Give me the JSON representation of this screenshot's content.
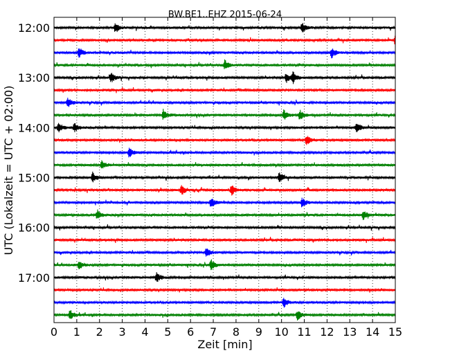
{
  "chart_data": {
    "type": "line",
    "title": "BW.BE1..EHZ 2015-06-24",
    "xlabel": "Zeit  [min]",
    "ylabel": "UTC (Lokalzeit = UTC + 02:00)",
    "xlim": [
      0,
      15
    ],
    "x_ticks": [
      "0",
      "1",
      "2",
      "3",
      "4",
      "5",
      "6",
      "7",
      "8",
      "9",
      "10",
      "11",
      "12",
      "13",
      "14",
      "15"
    ],
    "y_ticks": [
      {
        "label": "12:00",
        "row": 0
      },
      {
        "label": "13:00",
        "row": 4
      },
      {
        "label": "14:00",
        "row": 8
      },
      {
        "label": "15:00",
        "row": 12
      },
      {
        "label": "16:00",
        "row": 16
      },
      {
        "label": "17:00",
        "row": 20
      }
    ],
    "grid": "vertical dotted lines at each minute",
    "row_colors": [
      "#000000",
      "#ff0000",
      "#0000ff",
      "#008000"
    ],
    "trace_interval_minutes": 15,
    "traces": [
      {
        "start": "12:00",
        "events": [
          2.7,
          10.9
        ]
      },
      {
        "start": "12:15",
        "events": [
          15.0
        ]
      },
      {
        "start": "12:30",
        "events": [
          1.1,
          12.2
        ]
      },
      {
        "start": "12:45",
        "events": [
          7.5
        ]
      },
      {
        "start": "13:00",
        "events": [
          2.5,
          10.2,
          10.5
        ]
      },
      {
        "start": "13:15",
        "events": []
      },
      {
        "start": "13:30",
        "events": [
          0.6
        ]
      },
      {
        "start": "13:45",
        "events": [
          4.8,
          10.1,
          10.8
        ]
      },
      {
        "start": "14:00",
        "events": [
          0.2,
          0.9,
          13.3
        ]
      },
      {
        "start": "14:15",
        "events": [
          11.1
        ]
      },
      {
        "start": "14:30",
        "events": [
          3.3
        ]
      },
      {
        "start": "14:45",
        "events": [
          2.1
        ]
      },
      {
        "start": "15:00",
        "events": [
          1.7,
          9.9
        ]
      },
      {
        "start": "15:15",
        "events": [
          5.6,
          7.8
        ]
      },
      {
        "start": "15:30",
        "events": [
          6.9,
          10.9
        ]
      },
      {
        "start": "15:45",
        "events": [
          1.9,
          13.6
        ]
      },
      {
        "start": "16:00",
        "events": []
      },
      {
        "start": "16:15",
        "events": []
      },
      {
        "start": "16:30",
        "events": [
          6.7
        ]
      },
      {
        "start": "16:45",
        "events": [
          1.1,
          6.9
        ]
      },
      {
        "start": "17:00",
        "events": [
          4.5
        ]
      },
      {
        "start": "17:15",
        "events": []
      },
      {
        "start": "17:30",
        "events": [
          10.1
        ]
      },
      {
        "start": "17:45",
        "events": [
          0.7,
          10.7
        ]
      }
    ]
  }
}
